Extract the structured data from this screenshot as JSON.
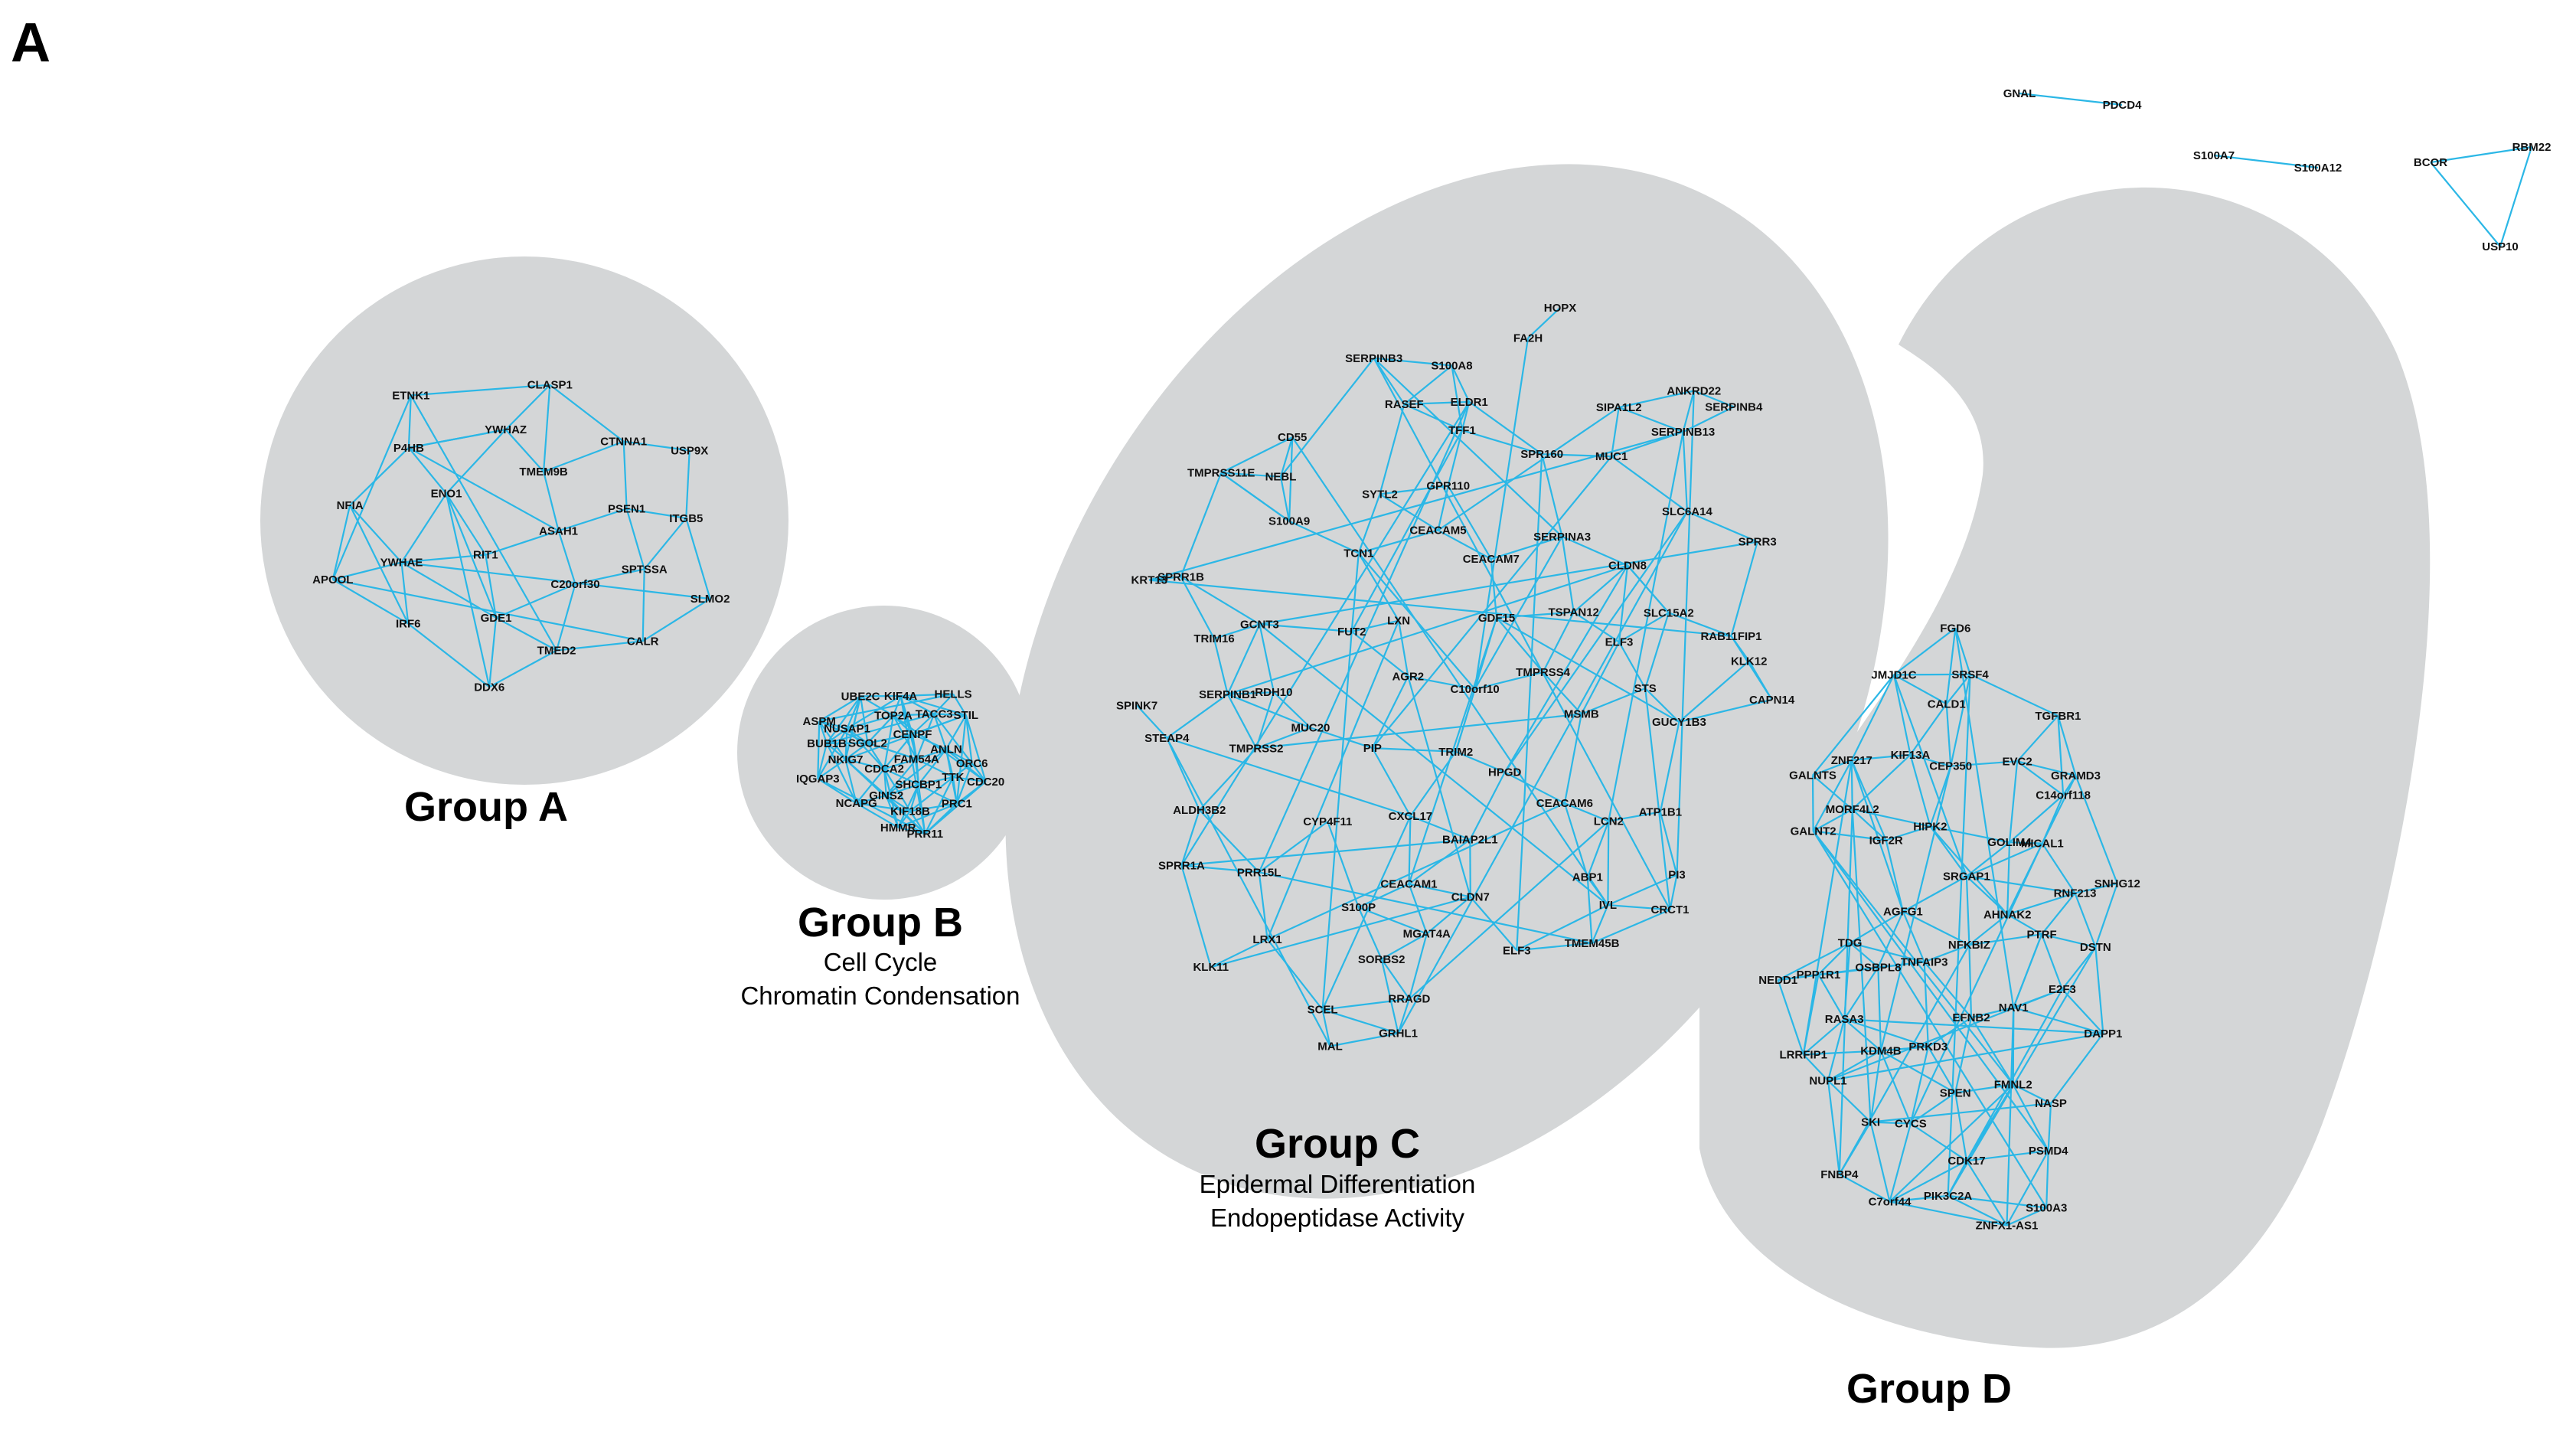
{
  "panel_label": "A",
  "colors": {
    "edge": "#2bb7e6",
    "cluster_fill": "#d4d6d7",
    "text": "#111111"
  },
  "groups": [
    {
      "id": "A",
      "title": "Group A",
      "subtitle_lines": [],
      "nodes": [
        "ASAH1",
        "RIT1",
        "TMEM9B",
        "C20orf30",
        "ENO1",
        "PSEN1",
        "GDE1",
        "YWHAZ",
        "SPTSSA",
        "YWHAE",
        "CTNNA1",
        "TMED2",
        "P4HB",
        "ITGB5",
        "IRF6",
        "CLASP1",
        "CALR",
        "NFIA",
        "USP9X",
        "DDX6",
        "ETNK1",
        "SLMO2",
        "APOOL"
      ]
    },
    {
      "id": "B",
      "title": "Group B",
      "subtitle_lines": [
        "Cell Cycle",
        "Chromatin Condensation"
      ],
      "nodes": [
        "FAM54A",
        "CDCA2",
        "CENPF",
        "SHCBP1",
        "SGOL2",
        "ANLN",
        "GINS2",
        "TOP2A",
        "TTK",
        "NKIG7",
        "TACC3",
        "KIF18B",
        "NUSAP1",
        "ORC6",
        "NCAPG",
        "KIF4A",
        "PRC1",
        "BUB1B",
        "STIL",
        "HMMR",
        "UBE2C",
        "CDC20",
        "IQGAP3",
        "HELLS",
        "PRR11",
        "ASPM"
      ]
    },
    {
      "id": "C",
      "title": "Group C",
      "subtitle_lines": [
        "Epidermal Differentiation",
        "Endopeptidase Activity"
      ],
      "nodes": [
        "C10orf10",
        "AGR2",
        "GDF15",
        "TRIM2",
        "LXN",
        "TMPRSS4",
        "PIP",
        "CEACAM7",
        "HPGD",
        "FUT2",
        "TSPAN12",
        "CXCL17",
        "CEACAM5",
        "MSMB",
        "MUC20",
        "SERPINA3",
        "BAIAP2L1",
        "TCN1",
        "ELF3",
        "CYP4F11",
        "GPR110",
        "CEACAM6",
        "RDH10",
        "CLDN8",
        "CEACAM1",
        "SYTL2",
        "STS",
        "TMPRSS2",
        "SPR160",
        "CLDN7",
        "GCNT3",
        "SLC15A2",
        "S100P",
        "TFF1",
        "LCN2",
        "SERPINB1",
        "MUC1",
        "MGAT4A",
        "S100A9",
        "GUCY1B3",
        "PRR15L",
        "ELDR1",
        "ABP1",
        "TRIM16",
        "SLC6A14",
        "SORBS2",
        "RASEF",
        "ATP1B1",
        "ALDH3B2",
        "SIPA1L2",
        "ELF3",
        "NEBL",
        "RAB11FIP1",
        "LRX1",
        "S100A8",
        "IVL",
        "STEAP4",
        "SERPINB13",
        "RRAGD",
        "CD55",
        "KLK12",
        "SPRR1A",
        "FA2H",
        "TMEM45B",
        "SPRR1B",
        "SPRR3",
        "SCEL",
        "SERPINB3",
        "PI3",
        "SPINK7",
        "ANKRD22",
        "GRHL1",
        "TMPRSS11E",
        "CAPN14",
        "KLK11",
        "HOPX",
        "CRCT1",
        "KRT13",
        "SERPINB4",
        "MAL"
      ]
    },
    {
      "id": "D",
      "title": "Group D",
      "subtitle_lines": [],
      "nodes": [
        "NFKBIZ",
        "TNFAIP3",
        "SRGAP1",
        "EFNB2",
        "AGFG1",
        "AHNAK2",
        "PRKD3",
        "HIPK2",
        "NAV1",
        "OSBPL8",
        "GOLIM4",
        "SPEN",
        "IGF2R",
        "PTRF",
        "KDM4B",
        "CEP350",
        "FMNL2",
        "TDG",
        "MICAL1",
        "CYCS",
        "KIF13A",
        "E2F3",
        "RASA3",
        "EVC2",
        "CDK17",
        "MORF4L2",
        "RNF213",
        "SKI",
        "CALD1",
        "NASP",
        "PPP1R1",
        "C14orf118",
        "PIK3C2A",
        "ZNF217",
        "DSTN",
        "NUPL1",
        "SRSF4",
        "PSMD4",
        "GALNT2",
        "GRAMD3",
        "C7orf44",
        "JMJD1C",
        "DAPP1",
        "LRRFIP1",
        "TGFBR1",
        "ZNFX1-AS1",
        "GALNTS",
        "SNHG12",
        "FNBP4",
        "FGD6",
        "S100A3",
        "NEDD1"
      ]
    }
  ],
  "isolated_pairs": [
    {
      "nodes": [
        "GNAL",
        "PDCD4"
      ]
    },
    {
      "nodes": [
        "S100A7",
        "S100A12"
      ]
    },
    {
      "nodes": [
        "BCOR",
        "RBM22",
        "USP10"
      ]
    }
  ]
}
